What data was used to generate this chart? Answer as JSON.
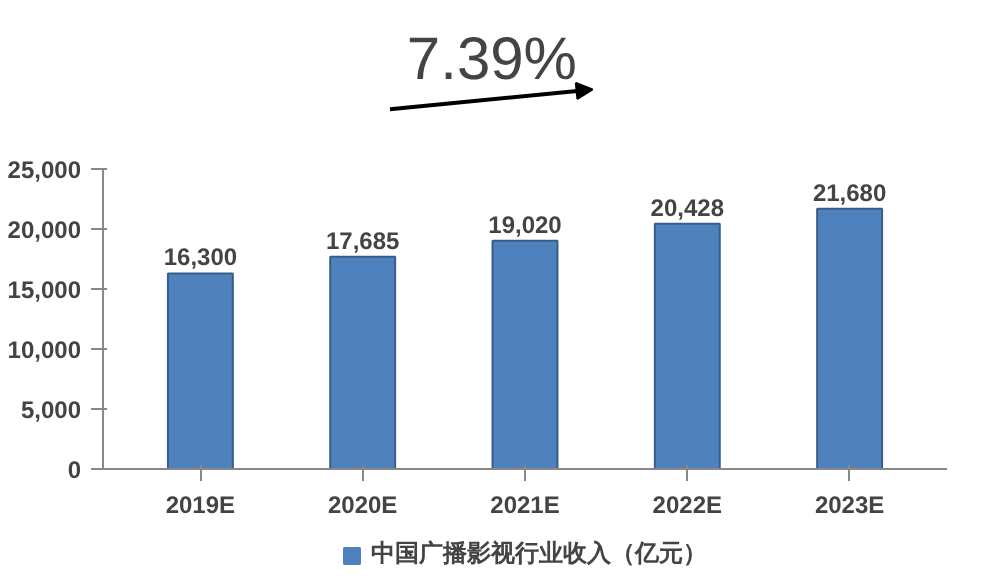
{
  "chart_data": {
    "type": "bar",
    "categories": [
      "2019E",
      "2020E",
      "2021E",
      "2022E",
      "2023E"
    ],
    "series": [
      {
        "name": "中国广播影视行业收入（亿元）",
        "color": "#4f81bd",
        "values": [
          16300,
          17685,
          19020,
          20428,
          21680
        ],
        "value_labels": [
          "16,300",
          "17,685",
          "19,020",
          "20,428",
          "21,680"
        ]
      }
    ],
    "ylim": [
      0,
      25000
    ],
    "yticks": [
      0,
      {
        "value": 5000,
        "label": "5,000"
      },
      {
        "value": 10000,
        "label": "10,000"
      },
      {
        "value": 15000,
        "label": "15,000"
      },
      {
        "value": 20000,
        "label": "20,000"
      },
      {
        "value": 25000,
        "label": "25,000"
      }
    ],
    "annotations": [
      "7.39%"
    ],
    "grid": false,
    "legend": "bottom"
  }
}
